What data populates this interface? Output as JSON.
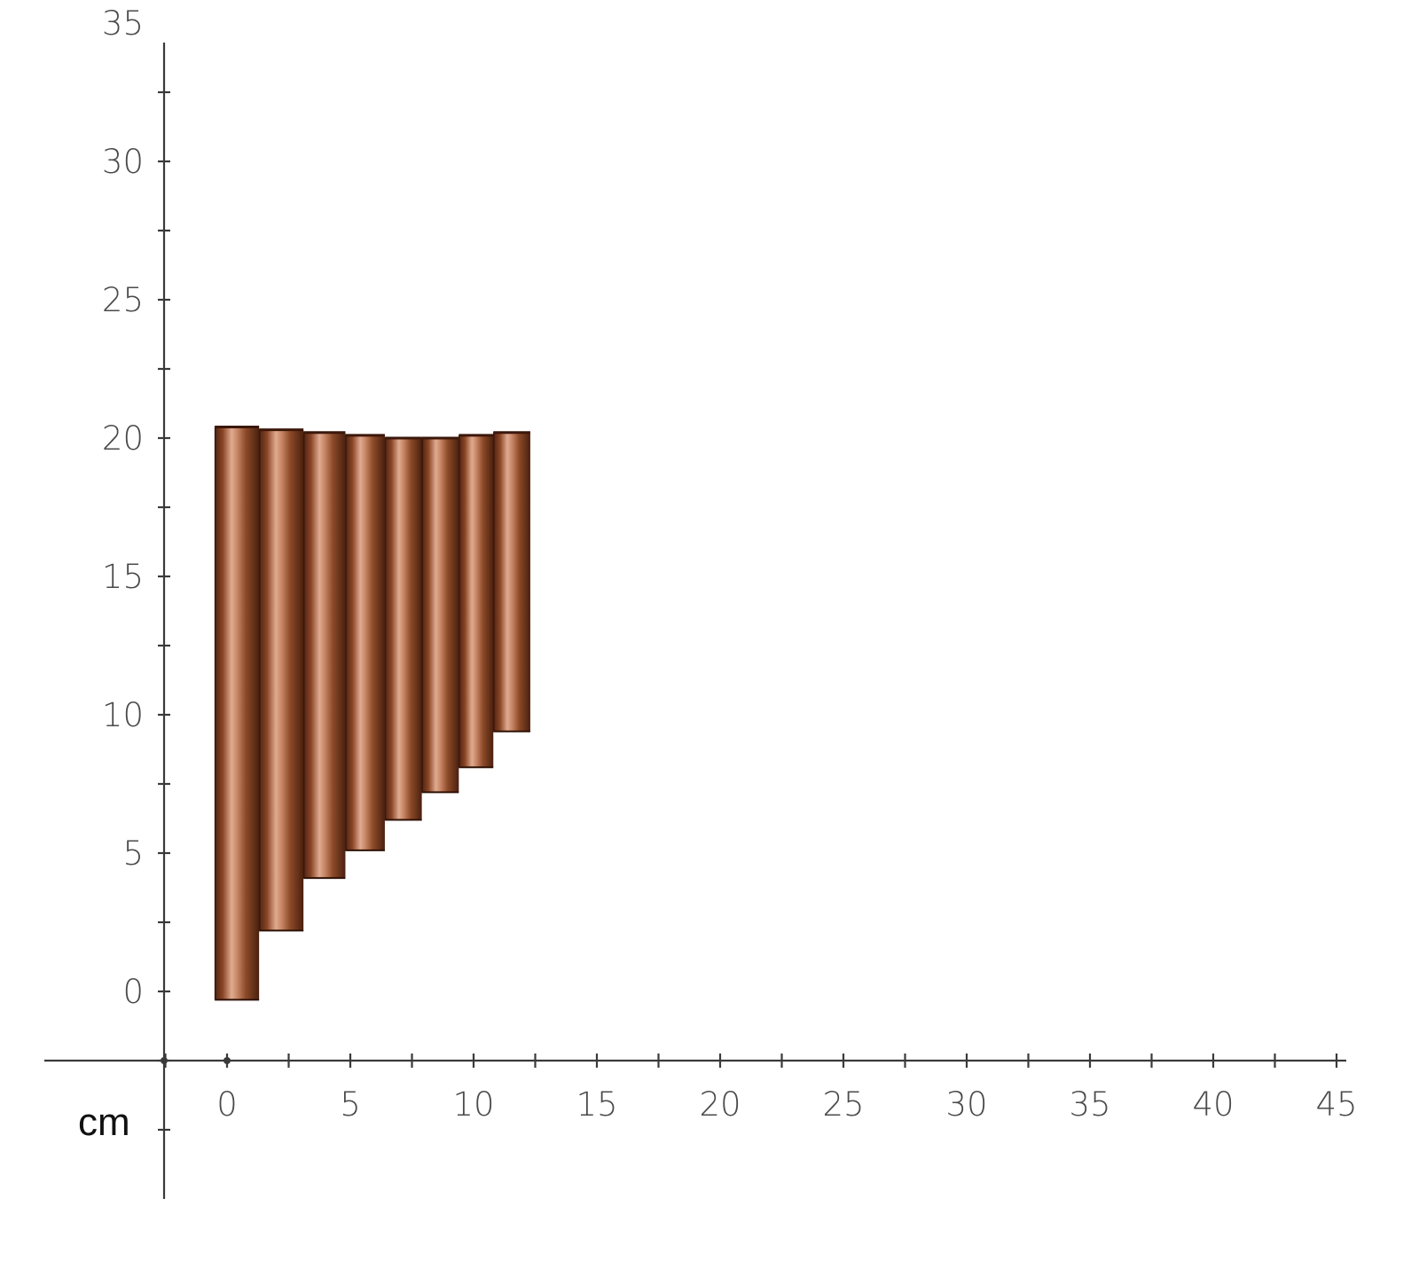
{
  "chart_data": {
    "type": "diagram",
    "unit_label": "cm",
    "x_ticks": [
      "0",
      "5",
      "10",
      "15",
      "20",
      "25",
      "30",
      "35",
      "40",
      "45"
    ],
    "y_ticks": [
      "0",
      "5",
      "10",
      "15",
      "20",
      "25",
      "30",
      "35"
    ],
    "xlim": [
      -2.5,
      45.5
    ],
    "ylim": [
      -7.5,
      37
    ],
    "pipes": [
      {
        "x_left": -0.5,
        "x_right": 1.3,
        "top": 20.4,
        "bottom": -0.3
      },
      {
        "x_left": 1.3,
        "x_right": 3.1,
        "top": 20.3,
        "bottom": 2.2
      },
      {
        "x_left": 3.1,
        "x_right": 4.8,
        "top": 20.2,
        "bottom": 4.1
      },
      {
        "x_left": 4.8,
        "x_right": 6.4,
        "top": 20.1,
        "bottom": 5.1
      },
      {
        "x_left": 6.4,
        "x_right": 7.9,
        "top": 20.0,
        "bottom": 6.2
      },
      {
        "x_left": 7.9,
        "x_right": 9.4,
        "top": 20.0,
        "bottom": 7.2
      },
      {
        "x_left": 9.4,
        "x_right": 10.8,
        "top": 20.1,
        "bottom": 8.1
      },
      {
        "x_left": 10.8,
        "x_right": 12.3,
        "top": 20.2,
        "bottom": 9.4
      }
    ],
    "colors": {
      "pipe_dark": "#5a2a16",
      "pipe_mid": "#8a4a2a",
      "pipe_light": "#d9a58a",
      "axis": "#3a3a3a"
    }
  }
}
